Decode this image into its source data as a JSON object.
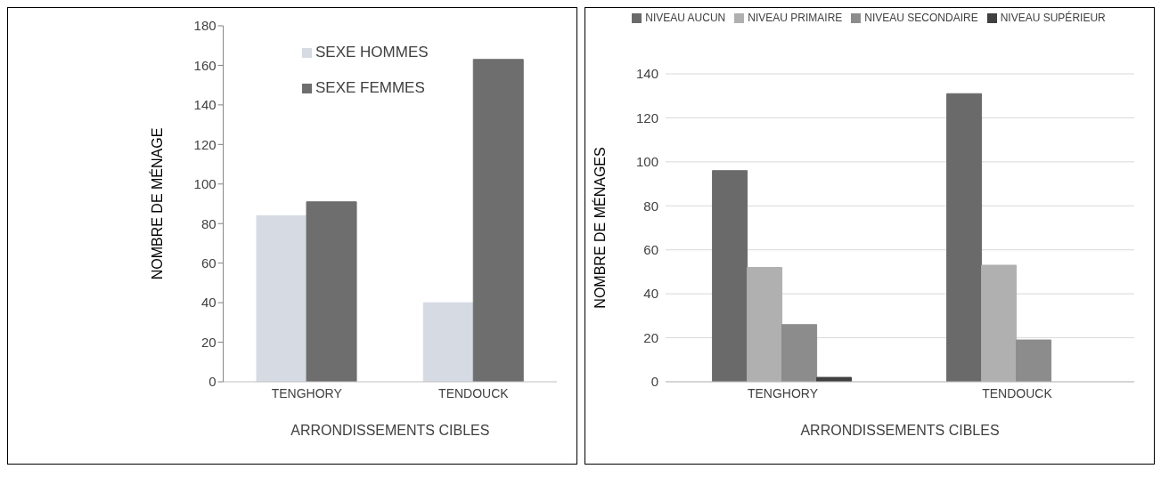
{
  "chart_data": [
    {
      "type": "bar",
      "categories": [
        "TENGHORY",
        "TENDOUCK"
      ],
      "xlabel": "ARRONDISSEMENTS CIBLES",
      "ylabel": "NOMBRE DE MÉNAGE",
      "ylim": [
        0,
        180
      ],
      "yticks": [
        0,
        20,
        40,
        60,
        80,
        100,
        120,
        140,
        160,
        180
      ],
      "grid": false,
      "legend": "top left",
      "series": [
        {
          "name": "SEXE HOMMES",
          "color": "#d6dbe3",
          "values": [
            84,
            40
          ]
        },
        {
          "name": "SEXE FEMMES",
          "color": "#6e6e6e",
          "values": [
            91,
            163
          ]
        }
      ]
    },
    {
      "type": "bar",
      "categories": [
        "TENGHORY",
        "TENDOUCK"
      ],
      "xlabel": "ARRONDISSEMENTS CIBLES",
      "ylabel": "NOMBRE DE MÉNAGES",
      "ylim": [
        0,
        140
      ],
      "yticks": [
        0,
        20,
        40,
        60,
        80,
        100,
        120,
        140
      ],
      "grid": "y",
      "legend": "top",
      "series": [
        {
          "name": "NIVEAU AUCUN",
          "color": "#6a6a6a",
          "values": [
            96,
            131
          ]
        },
        {
          "name": "NIVEAU PRIMAIRE",
          "color": "#b0b0b0",
          "values": [
            52,
            53
          ]
        },
        {
          "name": "NIVEAU SECONDAIRE",
          "color": "#8c8c8c",
          "values": [
            26,
            19
          ]
        },
        {
          "name": "NIVEAU SUPÉRIEUR",
          "color": "#404040",
          "values": [
            2,
            0
          ]
        }
      ]
    }
  ]
}
